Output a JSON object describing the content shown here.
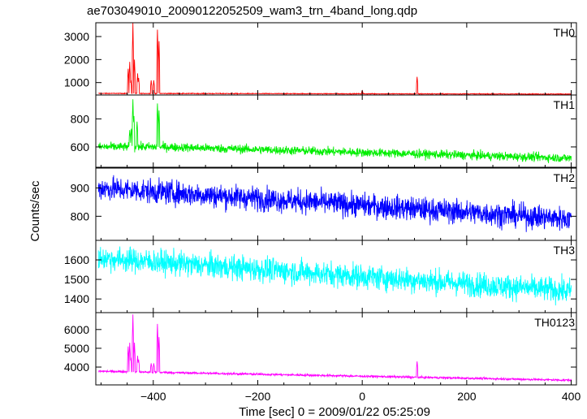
{
  "title": "ae703049010_20090122052509_wam3_trn_4band_long.qdp",
  "ylabel": "Counts/sec",
  "xlabel": "Time [sec] 0 = 2009/01/22 05:25:09",
  "chart_data": {
    "type": "line",
    "shared_x": true,
    "xlim": [
      -510,
      410
    ],
    "xticks": [
      -400,
      -200,
      0,
      200,
      400
    ],
    "panels": [
      {
        "name": "TH0",
        "color": "#ff0000",
        "ylim": [
          460,
          3600
        ],
        "yticks": [
          1000,
          2000,
          3000
        ],
        "baseline": [
          [
            -505,
            530
          ],
          [
            400,
            500
          ]
        ],
        "noise": 12,
        "spikes": [
          [
            -448,
            1600
          ],
          [
            -445,
            1900
          ],
          [
            -443,
            1100
          ],
          [
            -439,
            3600
          ],
          [
            -436,
            2000
          ],
          [
            -430,
            1400
          ],
          [
            -428,
            1200
          ],
          [
            -404,
            1100
          ],
          [
            -399,
            1100
          ],
          [
            -392,
            3300
          ],
          [
            -389,
            2800
          ],
          [
            0,
            650
          ],
          [
            105,
            1250
          ]
        ]
      },
      {
        "name": "TH1",
        "color": "#00ee00",
        "ylim": [
          455,
          970
        ],
        "yticks": [
          600,
          800
        ],
        "baseline": [
          [
            -505,
            600
          ],
          [
            -380,
            600
          ],
          [
            400,
            520
          ]
        ],
        "noise": 22,
        "spikes": [
          [
            -445,
            720
          ],
          [
            -442,
            730
          ],
          [
            -439,
            940
          ],
          [
            -437,
            820
          ],
          [
            -431,
            780
          ],
          [
            -392,
            910
          ],
          [
            -389,
            860
          ]
        ]
      },
      {
        "name": "TH2",
        "color": "#0000ff",
        "ylim": [
          715,
          970
        ],
        "yticks": [
          800,
          900
        ],
        "baseline": [
          [
            -505,
            900
          ],
          [
            400,
            790
          ]
        ],
        "noise": 30,
        "spikes": []
      },
      {
        "name": "TH3",
        "color": "#00ffff",
        "ylim": [
          1330,
          1700
        ],
        "yticks": [
          1400,
          1500,
          1600
        ],
        "baseline": [
          [
            -505,
            1610
          ],
          [
            400,
            1440
          ]
        ],
        "noise": 45,
        "spikes": []
      },
      {
        "name": "TH0123",
        "color": "#ff00ff",
        "ylim": [
          3050,
          6900
        ],
        "yticks": [
          4000,
          5000,
          6000
        ],
        "baseline": [
          [
            -505,
            3780
          ],
          [
            400,
            3300
          ]
        ],
        "noise": 40,
        "spikes": [
          [
            -448,
            5100
          ],
          [
            -445,
            5300
          ],
          [
            -443,
            4500
          ],
          [
            -439,
            6800
          ],
          [
            -436,
            5300
          ],
          [
            -430,
            4600
          ],
          [
            -428,
            4400
          ],
          [
            -404,
            4200
          ],
          [
            -399,
            4200
          ],
          [
            -392,
            6300
          ],
          [
            -389,
            5600
          ],
          [
            105,
            4300
          ]
        ]
      }
    ]
  }
}
